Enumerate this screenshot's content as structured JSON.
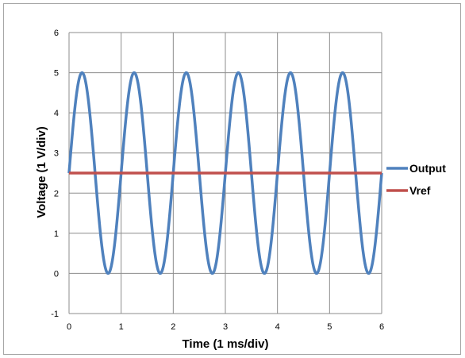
{
  "chart_data": {
    "type": "line",
    "xlabel": "Time (1 ms/div)",
    "ylabel": "Voltage (1 V/div)",
    "xlim": [
      0,
      6
    ],
    "ylim": [
      -1,
      6
    ],
    "xticks": [
      "0",
      "1",
      "2",
      "3",
      "4",
      "5",
      "6"
    ],
    "yticks": [
      "-1",
      "0",
      "1",
      "2",
      "3",
      "4",
      "5",
      "6"
    ],
    "grid": true,
    "legend_position": "right",
    "series": [
      {
        "name": "Output",
        "color": "#4f81bd",
        "description": "sine wave, amplitude 2.5 V about 2.5 V offset, period 1 ms",
        "offset": 2.5,
        "amplitude": 2.5,
        "period": 1,
        "x": [
          0,
          0.25,
          0.5,
          0.75,
          1,
          1.25,
          1.5,
          1.75,
          2,
          2.25,
          2.5,
          2.75,
          3,
          3.25,
          3.5,
          3.75,
          4,
          4.25,
          4.5,
          4.75,
          5,
          5.25,
          5.5,
          5.75,
          6
        ],
        "y": [
          2.5,
          5,
          2.5,
          0,
          2.5,
          5,
          2.5,
          0,
          2.5,
          5,
          2.5,
          0,
          2.5,
          5,
          2.5,
          0,
          2.5,
          5,
          2.5,
          0,
          2.5,
          5,
          2.5,
          0,
          2.5
        ]
      },
      {
        "name": "Vref",
        "color": "#c0504d",
        "x": [
          0,
          6
        ],
        "y": [
          2.5,
          2.5
        ]
      }
    ]
  }
}
